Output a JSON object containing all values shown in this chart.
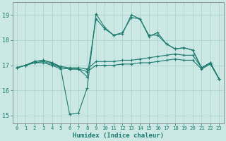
{
  "xlabel": "Humidex (Indice chaleur)",
  "ylabel": "",
  "background_color": "#cce8e5",
  "grid_color": "#aed4d0",
  "line_color": "#1a7a6e",
  "xlim": [
    -0.5,
    23.5
  ],
  "ylim": [
    14.7,
    19.5
  ],
  "yticks": [
    15,
    16,
    17,
    18,
    19
  ],
  "xticks": [
    0,
    1,
    2,
    3,
    4,
    5,
    6,
    7,
    8,
    9,
    10,
    11,
    12,
    13,
    14,
    15,
    16,
    17,
    18,
    19,
    20,
    21,
    22,
    23
  ],
  "lines": [
    {
      "x": [
        0,
        1,
        2,
        3,
        4,
        5,
        6,
        7,
        8,
        9,
        10,
        11,
        12,
        13,
        14,
        15,
        16,
        17,
        18,
        19,
        20,
        21,
        22,
        23
      ],
      "y": [
        16.9,
        17.0,
        17.1,
        17.15,
        17.05,
        16.9,
        16.85,
        16.85,
        16.75,
        17.0,
        17.0,
        17.0,
        17.05,
        17.05,
        17.1,
        17.1,
        17.15,
        17.2,
        17.25,
        17.2,
        17.2,
        16.85,
        17.05,
        16.45
      ]
    },
    {
      "x": [
        0,
        1,
        2,
        3,
        4,
        5,
        6,
        7,
        8,
        9,
        10,
        11,
        12,
        13,
        14,
        15,
        16,
        17,
        18,
        19,
        20,
        21,
        22,
        23
      ],
      "y": [
        16.9,
        17.0,
        17.15,
        17.2,
        17.1,
        16.95,
        16.9,
        16.9,
        16.85,
        17.15,
        17.15,
        17.15,
        17.2,
        17.2,
        17.25,
        17.3,
        17.35,
        17.4,
        17.45,
        17.4,
        17.4,
        16.9,
        17.1,
        16.45
      ]
    },
    {
      "x": [
        0,
        1,
        2,
        3,
        4,
        5,
        6,
        7,
        8,
        9,
        10,
        11,
        12,
        13,
        14,
        15,
        16,
        17,
        18,
        19,
        20,
        21,
        22,
        23
      ],
      "y": [
        16.9,
        17.0,
        17.15,
        17.2,
        17.1,
        16.9,
        16.85,
        16.85,
        16.55,
        18.85,
        18.45,
        18.2,
        18.3,
        18.9,
        18.85,
        18.2,
        18.2,
        17.85,
        17.65,
        17.7,
        17.6,
        16.9,
        17.1,
        16.45
      ]
    },
    {
      "x": [
        0,
        1,
        2,
        3,
        4,
        5,
        6,
        7,
        8,
        9,
        10,
        11,
        12,
        13,
        14,
        15,
        16,
        17,
        18,
        19,
        20,
        21,
        22,
        23
      ],
      "y": [
        16.9,
        17.0,
        17.1,
        17.1,
        17.0,
        16.85,
        15.05,
        15.1,
        16.1,
        19.05,
        18.5,
        18.2,
        18.25,
        19.0,
        18.85,
        18.15,
        18.3,
        17.85,
        17.65,
        17.7,
        17.6,
        16.9,
        17.1,
        16.45
      ]
    }
  ]
}
